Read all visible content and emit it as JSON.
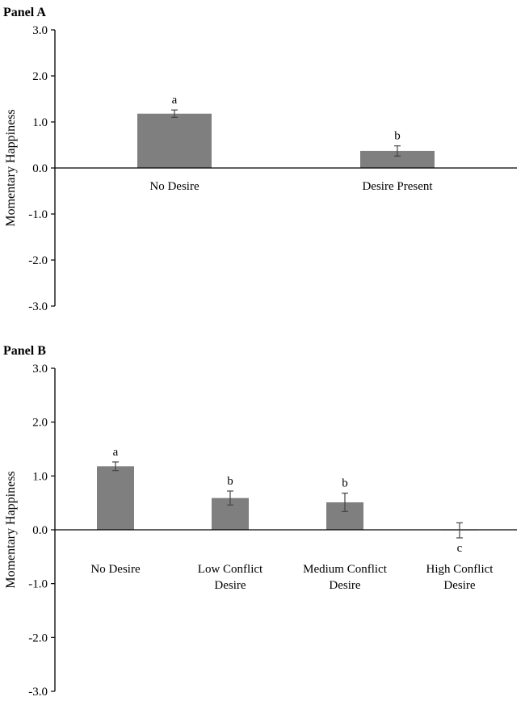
{
  "chart_data": [
    {
      "type": "bar",
      "title": "Panel A",
      "ylabel": "Momentary Happiness",
      "xlabel": "",
      "ylim": [
        -3.0,
        3.0
      ],
      "yticks": [
        "3.0",
        "2.0",
        "1.0",
        "0.0",
        "-1.0",
        "-2.0",
        "-3.0"
      ],
      "categories": [
        [
          "No Desire"
        ],
        [
          "Desire Present"
        ]
      ],
      "values": [
        1.18,
        0.37
      ],
      "errors": [
        0.08,
        0.11
      ],
      "significance": [
        "a",
        "b"
      ],
      "bar_color": "#7f7f7f"
    },
    {
      "type": "bar",
      "title": "Panel B",
      "ylabel": "Momentary Happiness",
      "xlabel": "",
      "ylim": [
        -3.0,
        3.0
      ],
      "yticks": [
        "3.0",
        "2.0",
        "1.0",
        "0.0",
        "-1.0",
        "-2.0",
        "-3.0"
      ],
      "categories": [
        [
          "No Desire"
        ],
        [
          "Low Conflict",
          "Desire"
        ],
        [
          "Medium Conflict",
          "Desire"
        ],
        [
          "High Conflict",
          "Desire"
        ]
      ],
      "values": [
        1.18,
        0.59,
        0.51,
        -0.01
      ],
      "errors": [
        0.08,
        0.13,
        0.17,
        0.14
      ],
      "significance": [
        "a",
        "b",
        "b",
        "c"
      ],
      "bar_color": "#7f7f7f"
    }
  ]
}
